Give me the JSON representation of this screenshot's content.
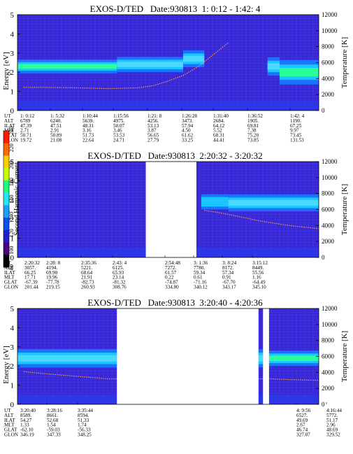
{
  "colorbar": {
    "label": "Second Harmonic Current",
    "ticks": [
      "80",
      "100",
      "120",
      "140",
      "160",
      "180",
      "200",
      "220",
      "240"
    ],
    "colors": [
      "#000000",
      "#4b007f",
      "#1f1fd0",
      "#0a52f0",
      "#1aa0ff",
      "#22e6ff",
      "#1cff7a",
      "#c8ff00",
      "#ffd000",
      "#ff6a00",
      "#ff1a00"
    ]
  },
  "palette": {
    "background": "#3a2ad8",
    "gap": "#ffffff",
    "band_core": "#2aff9a",
    "band_edge": "#1ac6ff",
    "band_outer": "#1a72ff",
    "low_energy": "#2a3cf0",
    "temperature_trace": "#ff9b3a"
  },
  "panels": [
    {
      "title": "EXOS-D/TED   Date:930813  1: 0:12 - 1:42: 4",
      "y_left": {
        "label": "Energy [eV]",
        "range": [
          0,
          5
        ],
        "ticks": [
          "0",
          "1",
          "2",
          "3",
          "4",
          "5"
        ]
      },
      "y_right": {
        "label": "Temperature [K]",
        "range": [
          0,
          12000
        ],
        "ticks": [
          "0",
          "2000",
          "4000",
          "6000",
          "8000",
          "10000",
          "12000"
        ]
      },
      "row_labels": [
        "UT",
        "ALT",
        "ILAT",
        "MLT",
        "GLAT",
        "GLON"
      ],
      "columns": [
        [
          "1: 0:12",
          "6789",
          "47.39",
          "2.71",
          "50.71",
          "19.72"
        ],
        [
          "1: 5:32",
          "6240.",
          "47.51",
          "2.91",
          "50.89",
          "21.08"
        ],
        [
          "1:10:44",
          "5639.",
          "48.31",
          "3.16",
          "51.73",
          "22.64"
        ],
        [
          "1:15:56",
          "4975.",
          "50.07",
          "3.46",
          "53.53",
          "24.71"
        ],
        [
          "1:21: 8",
          "4256.",
          "53.13",
          "3.87",
          "56.65",
          "27.79"
        ],
        [
          "1:26:28",
          "3473.",
          "57.94",
          "4.50",
          "61.62",
          "33.25"
        ],
        [
          "1:31:40",
          "2684.",
          "64.12",
          "5.52",
          "68.31",
          "44.41"
        ],
        [
          "1:36:52",
          "1905.",
          "69.81",
          "7.38",
          "75.20",
          "73.85"
        ],
        [
          "1:42: 4",
          "1190.",
          "67.25",
          "9.97",
          "73.45",
          "131.53"
        ]
      ],
      "gaps": [],
      "bands": [
        {
          "t0": 0.0,
          "t1": 0.33,
          "center_eV": 2.3,
          "width_eV": 0.45,
          "intensity": "high"
        },
        {
          "t0": 0.33,
          "t1": 0.55,
          "center_eV": 2.4,
          "width_eV": 0.5,
          "intensity": "medium"
        },
        {
          "t0": 0.55,
          "t1": 0.62,
          "center_eV": 2.7,
          "width_eV": 0.55,
          "intensity": "medium"
        },
        {
          "t0": 0.83,
          "t1": 0.87,
          "center_eV": 2.3,
          "width_eV": 0.6,
          "intensity": "medium"
        },
        {
          "t0": 0.87,
          "t1": 1.0,
          "center_eV": 2.0,
          "width_eV": 0.8,
          "intensity": "high"
        }
      ],
      "temperature_K": [
        [
          0.02,
          2900
        ],
        [
          0.1,
          2900
        ],
        [
          0.2,
          2850
        ],
        [
          0.3,
          2750
        ],
        [
          0.4,
          2850
        ],
        [
          0.45,
          3100
        ],
        [
          0.5,
          3700
        ],
        [
          0.55,
          4400
        ],
        [
          0.6,
          5500
        ],
        [
          0.65,
          7000
        ],
        [
          0.7,
          8500
        ]
      ]
    },
    {
      "title": "EXOS-D/TED   Date:930813  2:20:32 - 3:20:32",
      "y_left": {
        "label": "Energy [eV]",
        "range": [
          0,
          5
        ],
        "ticks": [
          "0",
          "1",
          "2",
          "3",
          "4",
          "5"
        ]
      },
      "y_right": {
        "label": "Temperature [K]",
        "range": [
          0,
          12000
        ],
        "ticks": [
          "0",
          "2000",
          "4000",
          "6000",
          "8000",
          "10000",
          "12000"
        ]
      },
      "row_labels": [
        "UT",
        "ALT",
        "ILAT",
        "MLT",
        "GLAT",
        "GLON"
      ],
      "columns": [
        [
          "2:20:32",
          "3057.",
          "66.25",
          "17.71",
          "-67.39",
          "201.44"
        ],
        [
          "2:28: 8",
          "4194.",
          "69.90",
          "19.96",
          "-77.78",
          "219.15"
        ],
        [
          "2:35:36",
          "5221.",
          "68.64",
          "21.91",
          "-82.73",
          "260.93"
        ],
        [
          "2:43: 4",
          "6125.",
          "65.93",
          "23.14",
          "-81.32",
          "308.76"
        ],
        [
          "2:54:48",
          "7272.",
          "61.57",
          "0.22",
          "-74.87",
          "334.80"
        ],
        [
          "3: 1:36",
          "7780.",
          "59.34",
          "0.61",
          "-71.16",
          "340.12"
        ],
        [
          "3: 8:24",
          "8172.",
          "57.34",
          "0.91",
          "-67.70",
          "343.17"
        ],
        [
          "3:15:12",
          "8449.",
          "55.56",
          "1.16",
          "-64.49",
          "345.10"
        ]
      ],
      "gaps": [
        [
          0.426,
          0.594
        ]
      ],
      "bands": [
        {
          "t0": 0.61,
          "t1": 0.7,
          "center_eV": 2.9,
          "width_eV": 0.5,
          "intensity": "low"
        },
        {
          "t0": 0.7,
          "t1": 1.0,
          "center_eV": 2.85,
          "width_eV": 0.55,
          "intensity": "medium"
        }
      ],
      "temperature_K": [
        [
          0.62,
          5900
        ],
        [
          0.7,
          5400
        ],
        [
          0.8,
          4600
        ],
        [
          0.9,
          4000
        ],
        [
          1.0,
          3600
        ]
      ]
    },
    {
      "title": "EXOS-D/TED   Date:930813  3:20:40 - 4:20:36",
      "y_left": {
        "label": "Energy [eV]",
        "range": [
          0,
          5
        ],
        "ticks": [
          "0",
          "1",
          "2",
          "3",
          "4",
          "5"
        ]
      },
      "y_right": {
        "label": "Temperature [K]",
        "range": [
          0,
          12000
        ],
        "ticks": [
          "0",
          "2000",
          "4000",
          "6000",
          "8000",
          "10000",
          "12000"
        ]
      },
      "row_labels": [
        "UT",
        "ALT",
        "ILAT",
        "MLT",
        "GLAT",
        "GLON"
      ],
      "columns": [
        [
          "3:20:40",
          "8589.",
          "54.27",
          "1.33",
          "-62.10",
          "346.19"
        ],
        [
          "3:28:16",
          "8661.",
          "52.68",
          "1.54",
          "-59.03",
          "347.33"
        ],
        [
          "3:35:44",
          "8594.",
          "51.33",
          "1.74",
          "-56.33",
          "348.25"
        ],
        [
          "4: 9:56",
          "6527.",
          "49.69",
          "2.67",
          "46.74",
          "327.07"
        ],
        [
          "4:16:44",
          "5772.",
          "51.17",
          "2.96",
          "48.69",
          "329.52"
        ]
      ],
      "gaps": [
        [
          0.33,
          0.8
        ],
        [
          0.815,
          0.835
        ]
      ],
      "bands": [
        {
          "t0": 0.0,
          "t1": 0.33,
          "center_eV": 2.4,
          "width_eV": 0.6,
          "intensity": "medium"
        },
        {
          "t0": 0.8,
          "t1": 0.815,
          "center_eV": 2.4,
          "width_eV": 0.6,
          "intensity": "medium"
        },
        {
          "t0": 0.835,
          "t1": 1.0,
          "center_eV": 2.4,
          "width_eV": 0.5,
          "intensity": "high"
        }
      ],
      "temperature_K": [
        [
          0.02,
          4100
        ],
        [
          0.1,
          3800
        ],
        [
          0.2,
          3500
        ],
        [
          0.3,
          3200
        ],
        [
          0.84,
          3200
        ],
        [
          0.9,
          3100
        ],
        [
          1.0,
          3000
        ]
      ]
    }
  ]
}
